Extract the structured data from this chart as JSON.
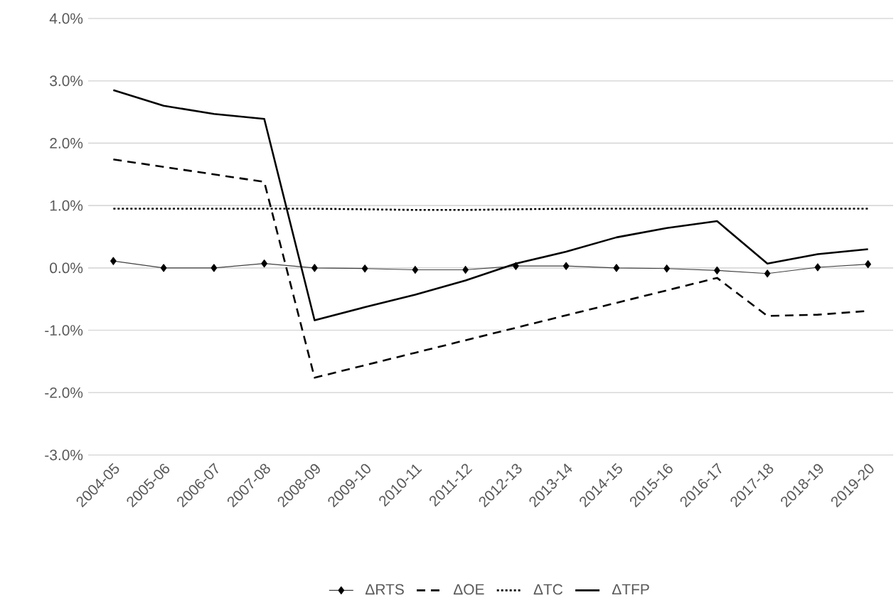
{
  "chart_data": {
    "type": "line",
    "categories": [
      "2004-05",
      "2005-06",
      "2006-07",
      "2007-08",
      "2008-09",
      "2009-10",
      "2010-11",
      "2011-12",
      "2012-13",
      "2013-14",
      "2014-15",
      "2015-16",
      "2016-17",
      "2017-18",
      "2018-19",
      "2019-20"
    ],
    "series": [
      {
        "name": "ΔRTS",
        "color": "#404040",
        "marker": "diamond",
        "line_style": "solid",
        "values": [
          0.11,
          0.0,
          0.0,
          0.07,
          0.0,
          -0.01,
          -0.03,
          -0.03,
          0.03,
          0.03,
          0.0,
          -0.01,
          -0.04,
          -0.09,
          0.01,
          0.06
        ]
      },
      {
        "name": "ΔOE",
        "color": "#000000",
        "marker": "none",
        "line_style": "dashed",
        "values": [
          1.74,
          1.62,
          1.5,
          1.38,
          -1.76,
          -1.56,
          -1.36,
          -1.16,
          -0.96,
          -0.76,
          -0.56,
          -0.36,
          -0.16,
          -0.77,
          -0.75,
          -0.69
        ]
      },
      {
        "name": "ΔTC",
        "color": "#000000",
        "marker": "none",
        "line_style": "dotted",
        "values": [
          0.95,
          0.95,
          0.95,
          0.95,
          0.95,
          0.94,
          0.93,
          0.93,
          0.94,
          0.95,
          0.95,
          0.95,
          0.95,
          0.95,
          0.95,
          0.95
        ]
      },
      {
        "name": "ΔTFP",
        "color": "#000000",
        "marker": "none",
        "line_style": "solid",
        "values": [
          2.85,
          2.6,
          2.47,
          2.39,
          -0.84,
          -0.63,
          -0.43,
          -0.2,
          0.07,
          0.26,
          0.49,
          0.64,
          0.75,
          0.07,
          0.22,
          0.3
        ]
      }
    ],
    "ylim": [
      -3,
      4
    ],
    "yticks": [
      {
        "value": -3,
        "label": "-3.0%"
      },
      {
        "value": -2,
        "label": "-2.0%"
      },
      {
        "value": -1,
        "label": "-1.0%"
      },
      {
        "value": 0,
        "label": "0.0%"
      },
      {
        "value": 1,
        "label": "1.0%"
      },
      {
        "value": 2,
        "label": "2.0%"
      },
      {
        "value": 3,
        "label": "3.0%"
      },
      {
        "value": 4,
        "label": "4.0%"
      }
    ],
    "grid": "y",
    "legend": "bottom"
  }
}
